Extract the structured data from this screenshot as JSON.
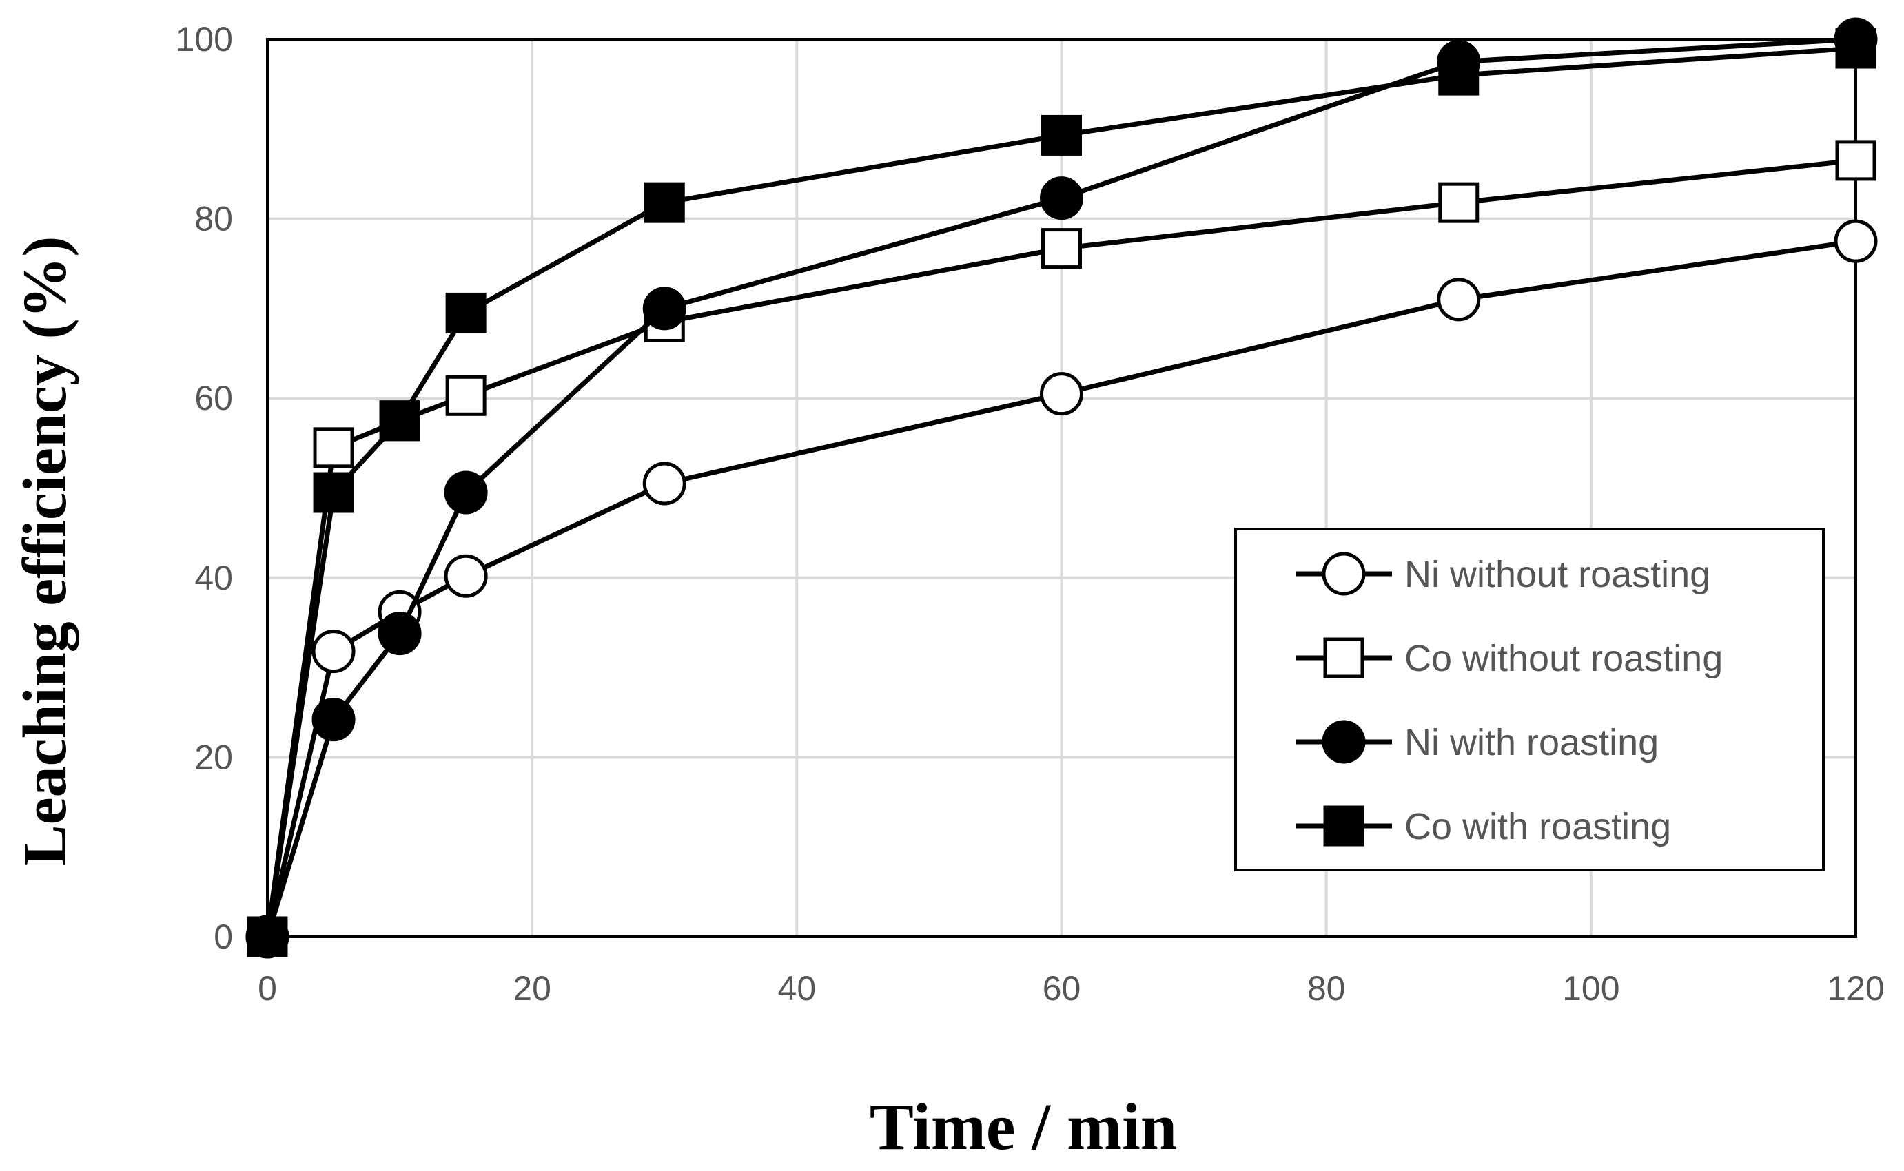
{
  "chart_data": {
    "type": "line",
    "title": "",
    "xlabel": "Time / min",
    "ylabel": "Leaching efficiency (%)",
    "xlim": [
      0,
      120
    ],
    "ylim": [
      0,
      100
    ],
    "xticks": [
      0,
      20,
      40,
      60,
      80,
      100,
      120
    ],
    "yticks": [
      0,
      20,
      40,
      60,
      80,
      100
    ],
    "grid": true,
    "legend_position": "bottom-right",
    "series": [
      {
        "name": "Ni without roasting",
        "marker": "circle",
        "filled": false,
        "x": [
          0,
          5,
          10,
          15,
          30,
          60,
          90,
          120
        ],
        "y": [
          0,
          31.8,
          36.2,
          40.2,
          50.5,
          60.5,
          71.0,
          77.5
        ]
      },
      {
        "name": "Co without roasting",
        "marker": "square",
        "filled": false,
        "x": [
          0,
          5,
          10,
          15,
          30,
          60,
          90,
          120
        ],
        "y": [
          0,
          54.5,
          57.5,
          60.3,
          68.5,
          76.7,
          81.8,
          86.5
        ]
      },
      {
        "name": "Ni with roasting",
        "marker": "circle",
        "filled": true,
        "x": [
          0,
          5,
          10,
          15,
          30,
          60,
          90,
          120
        ],
        "y": [
          0,
          24.2,
          33.8,
          49.5,
          70.0,
          82.3,
          97.5,
          100
        ]
      },
      {
        "name": "Co with roasting",
        "marker": "square",
        "filled": true,
        "x": [
          0,
          5,
          10,
          15,
          30,
          60,
          90,
          120
        ],
        "y": [
          0,
          49.5,
          57.5,
          69.5,
          81.8,
          89.3,
          96.0,
          99.0
        ]
      }
    ],
    "colors": {
      "line": "#000000",
      "grid": "#d9d9d9",
      "tick_text": "#555555",
      "background": "#ffffff"
    }
  }
}
